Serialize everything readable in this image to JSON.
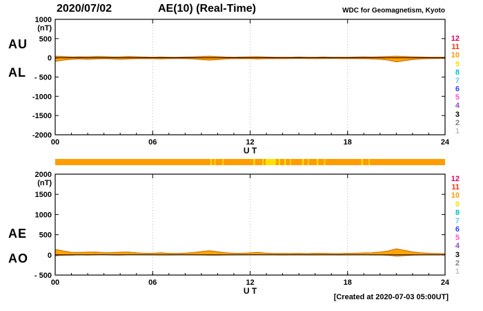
{
  "title": {
    "date": "2020/07/02",
    "main": "AE(10) (Real-Time)",
    "source": "WDC for Geomagnetism, Kyoto"
  },
  "footer": {
    "created": "[Created at 2020-07-03 05:00UT]"
  },
  "legend": {
    "items": [
      {
        "n": "12",
        "color": "#E5005A"
      },
      {
        "n": "11",
        "color": "#FF3000"
      },
      {
        "n": "10",
        "color": "#FF9C00"
      },
      {
        "n": "9",
        "color": "#FFDD00"
      },
      {
        "n": "8",
        "color": "#00BFBF"
      },
      {
        "n": "7",
        "color": "#58C8FF"
      },
      {
        "n": "6",
        "color": "#3040FF"
      },
      {
        "n": "5",
        "color": "#FF50C8"
      },
      {
        "n": "4",
        "color": "#9048C8"
      },
      {
        "n": "3",
        "color": "#000000"
      },
      {
        "n": "2",
        "color": "#808080"
      },
      {
        "n": "1",
        "color": "#C0C0C0"
      }
    ]
  },
  "station_bar": {
    "base_color": "#FF9C00",
    "stripe_color": "#FFE000",
    "x_range": [
      0,
      24
    ],
    "stripe_segments_hours": [
      [
        9.55,
        9.65
      ],
      [
        9.8,
        9.87
      ],
      [
        10.3,
        10.37
      ],
      [
        12.2,
        12.3
      ],
      [
        12.75,
        12.83
      ],
      [
        12.95,
        13.6
      ],
      [
        13.75,
        13.85
      ],
      [
        14.1,
        14.2
      ],
      [
        14.45,
        14.52
      ],
      [
        15.2,
        15.3
      ],
      [
        15.55,
        15.62
      ],
      [
        16.1,
        16.2
      ],
      [
        16.55,
        16.62
      ],
      [
        18.85,
        18.95
      ],
      [
        19.3,
        19.37
      ]
    ]
  },
  "chart_data": [
    {
      "type": "line",
      "panel": "top",
      "left_labels": [
        "AU",
        "AL"
      ],
      "unit_label": "(nT)",
      "x_label": "U T",
      "x_range": [
        0,
        24
      ],
      "x_tick_hours": [
        0,
        6,
        12,
        18,
        24
      ],
      "x_tick_labels": [
        "00",
        "06",
        "12",
        "18",
        "24"
      ],
      "x_minor_step_hours": 1,
      "grid_hours": [
        6,
        12,
        18
      ],
      "y_range": [
        -2000,
        1000
      ],
      "y_tick_values": [
        1000,
        500,
        0,
        -500,
        -1000,
        -1500,
        -2000
      ],
      "y_tick_labels": [
        "1000",
        "500",
        "0",
        "- 500",
        "-1000",
        "-1500",
        "-2000"
      ],
      "sample_step_hours": 0.5,
      "fill_color": "#FFA500",
      "edge_color": "#C86400",
      "zero_line_color": "#000000",
      "series": [
        {
          "name": "AU",
          "values": [
            45,
            38,
            25,
            30,
            28,
            38,
            33,
            25,
            28,
            38,
            30,
            22,
            18,
            22,
            15,
            18,
            22,
            28,
            38,
            45,
            33,
            22,
            18,
            22,
            28,
            30,
            22,
            18,
            15,
            18,
            22,
            15,
            18,
            22,
            18,
            15,
            18,
            22,
            28,
            22,
            30,
            38,
            45,
            38,
            28,
            22,
            18,
            15,
            15
          ]
        },
        {
          "name": "AL",
          "values": [
            -90,
            -60,
            -38,
            -30,
            -38,
            -30,
            -22,
            -30,
            -38,
            -30,
            -22,
            -18,
            -22,
            -30,
            -22,
            -18,
            -22,
            -30,
            -45,
            -60,
            -45,
            -30,
            -22,
            -18,
            -22,
            -30,
            -22,
            -18,
            -22,
            -18,
            -15,
            -18,
            -22,
            -18,
            -15,
            -18,
            -22,
            -18,
            -22,
            -30,
            -38,
            -60,
            -105,
            -75,
            -45,
            -30,
            -22,
            -18,
            -15
          ]
        }
      ]
    },
    {
      "type": "line",
      "panel": "bottom",
      "left_labels": [
        "AE",
        "AO"
      ],
      "unit_label": "(nT)",
      "x_label": "U T",
      "x_range": [
        0,
        24
      ],
      "x_tick_hours": [
        0,
        6,
        12,
        18,
        24
      ],
      "x_tick_labels": [
        "00",
        "06",
        "12",
        "18",
        "24"
      ],
      "x_minor_step_hours": 1,
      "grid_hours": [
        6,
        12,
        18
      ],
      "y_range": [
        -500,
        2000
      ],
      "y_tick_values": [
        2000,
        1500,
        1000,
        500,
        0,
        -500
      ],
      "y_tick_labels": [
        "2000",
        "1500",
        "1000",
        "500",
        "0",
        "- 500"
      ],
      "sample_step_hours": 0.5,
      "fill_color": "#FFA500",
      "edge_color": "#C86400",
      "zero_line_color": "#000000",
      "series": [
        {
          "name": "AE",
          "values": [
            135,
            98,
            63,
            60,
            66,
            68,
            55,
            55,
            66,
            68,
            52,
            40,
            40,
            52,
            37,
            36,
            44,
            58,
            83,
            105,
            78,
            52,
            40,
            40,
            50,
            60,
            44,
            36,
            37,
            36,
            37,
            33,
            40,
            40,
            33,
            33,
            40,
            40,
            50,
            52,
            68,
            98,
            150,
            113,
            73,
            52,
            40,
            33,
            30
          ]
        },
        {
          "name": "AO",
          "values": [
            -23,
            -11,
            -7,
            0,
            -5,
            4,
            6,
            -3,
            -5,
            4,
            4,
            2,
            -2,
            -4,
            -4,
            0,
            0,
            -1,
            -4,
            -8,
            -6,
            -4,
            -2,
            2,
            3,
            0,
            0,
            0,
            -4,
            0,
            4,
            -2,
            -2,
            2,
            2,
            -2,
            -2,
            2,
            3,
            -4,
            -4,
            -11,
            -30,
            -19,
            -9,
            -4,
            -2,
            -2,
            0
          ]
        }
      ]
    }
  ]
}
